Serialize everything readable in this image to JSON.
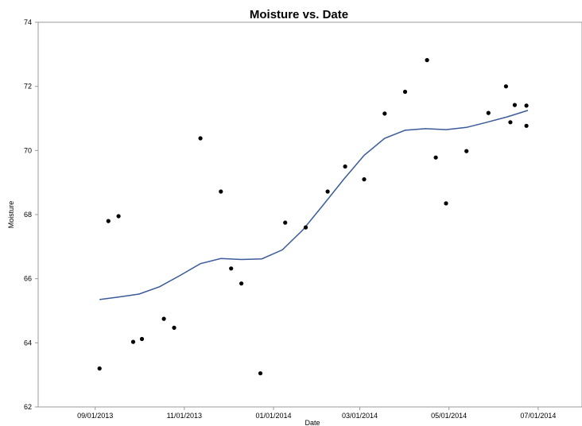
{
  "chart_data": {
    "type": "scatter",
    "title": "Moisture vs. Date",
    "xlabel": "Date",
    "ylabel": "Moisture",
    "xlim": [
      "2013-07-24",
      "2014-07-31"
    ],
    "ylim": [
      62,
      74
    ],
    "x_ticks": [
      "09/01/2013",
      "11/01/2013",
      "01/01/2014",
      "03/01/2014",
      "05/01/2014",
      "07/01/2014"
    ],
    "y_ticks": [
      "62",
      "64",
      "66",
      "68",
      "70",
      "72",
      "74"
    ],
    "grid": false,
    "legend": "none",
    "colors": {
      "points": "#000000",
      "trend": "#3a5a9a"
    },
    "series": [
      {
        "kind": "points",
        "points": [
          {
            "x": "2013-09-04",
            "y": 63.2
          },
          {
            "x": "2013-09-10",
            "y": 67.8
          },
          {
            "x": "2013-09-17",
            "y": 67.95
          },
          {
            "x": "2013-09-27",
            "y": 64.03
          },
          {
            "x": "2013-10-03",
            "y": 64.12
          },
          {
            "x": "2013-10-18",
            "y": 64.75
          },
          {
            "x": "2013-10-25",
            "y": 64.47
          },
          {
            "x": "2013-11-12",
            "y": 70.38
          },
          {
            "x": "2013-11-26",
            "y": 68.72
          },
          {
            "x": "2013-12-03",
            "y": 66.32
          },
          {
            "x": "2013-12-10",
            "y": 65.85
          },
          {
            "x": "2013-12-23",
            "y": 63.05
          },
          {
            "x": "2014-01-09",
            "y": 67.75
          },
          {
            "x": "2014-01-23",
            "y": 67.6
          },
          {
            "x": "2014-02-07",
            "y": 68.72
          },
          {
            "x": "2014-02-19",
            "y": 69.5
          },
          {
            "x": "2014-03-04",
            "y": 69.1
          },
          {
            "x": "2014-03-18",
            "y": 71.15
          },
          {
            "x": "2014-04-01",
            "y": 71.83
          },
          {
            "x": "2014-04-16",
            "y": 72.82
          },
          {
            "x": "2014-04-22",
            "y": 69.78
          },
          {
            "x": "2014-04-29",
            "y": 68.35
          },
          {
            "x": "2014-05-13",
            "y": 69.98
          },
          {
            "x": "2014-05-28",
            "y": 71.17
          },
          {
            "x": "2014-06-09",
            "y": 72.0
          },
          {
            "x": "2014-06-12",
            "y": 70.88
          },
          {
            "x": "2014-06-15",
            "y": 71.42
          },
          {
            "x": "2014-06-23",
            "y": 71.4
          },
          {
            "x": "2014-06-23",
            "y": 70.77
          }
        ]
      },
      {
        "kind": "trend",
        "points": [
          {
            "x": "2013-09-04",
            "y": 65.35
          },
          {
            "x": "2013-09-17",
            "y": 65.43
          },
          {
            "x": "2013-10-01",
            "y": 65.52
          },
          {
            "x": "2013-10-15",
            "y": 65.75
          },
          {
            "x": "2013-10-29",
            "y": 66.1
          },
          {
            "x": "2013-11-12",
            "y": 66.47
          },
          {
            "x": "2013-11-26",
            "y": 66.63
          },
          {
            "x": "2013-12-10",
            "y": 66.6
          },
          {
            "x": "2013-12-24",
            "y": 66.62
          },
          {
            "x": "2014-01-07",
            "y": 66.9
          },
          {
            "x": "2014-01-21",
            "y": 67.52
          },
          {
            "x": "2014-02-04",
            "y": 68.3
          },
          {
            "x": "2014-02-18",
            "y": 69.1
          },
          {
            "x": "2014-03-04",
            "y": 69.85
          },
          {
            "x": "2014-03-18",
            "y": 70.38
          },
          {
            "x": "2014-04-01",
            "y": 70.63
          },
          {
            "x": "2014-04-15",
            "y": 70.68
          },
          {
            "x": "2014-04-29",
            "y": 70.65
          },
          {
            "x": "2014-05-13",
            "y": 70.72
          },
          {
            "x": "2014-05-27",
            "y": 70.88
          },
          {
            "x": "2014-06-10",
            "y": 71.05
          },
          {
            "x": "2014-06-24",
            "y": 71.25
          }
        ]
      }
    ]
  }
}
